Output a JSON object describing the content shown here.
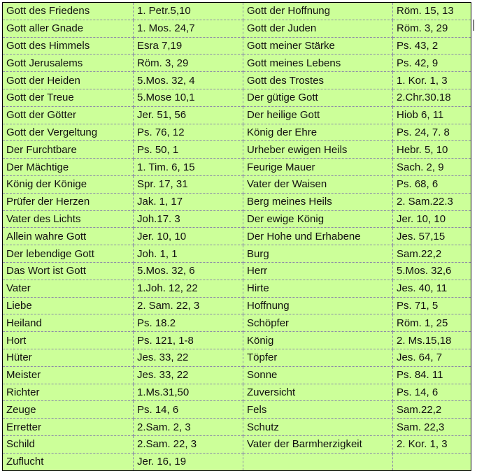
{
  "rows": [
    [
      "Gott des Friedens",
      "1. Petr.5,10",
      "Gott der Hoffnung",
      "Röm. 15, 13"
    ],
    [
      "Gott aller Gnade",
      "1. Mos. 24,7",
      "Gott der Juden",
      "Röm. 3, 29"
    ],
    [
      "Gott des Himmels",
      "Esra 7,19",
      "Gott meiner Stärke",
      "Ps. 43, 2"
    ],
    [
      "Gott Jerusalems",
      "Röm. 3, 29",
      "Gott meines Lebens",
      "Ps. 42, 9"
    ],
    [
      "Gott der Heiden",
      "5.Mos. 32, 4",
      "Gott des Trostes",
      "1. Kor. 1, 3"
    ],
    [
      "Gott der Treue",
      "5.Mose 10,1",
      "Der gütige Gott",
      "2.Chr.30.18"
    ],
    [
      "Gott der Götter",
      "Jer. 51, 56",
      "Der heilige Gott",
      "Hiob 6, 11"
    ],
    [
      "Gott der Vergeltung",
      "Ps. 76, 12",
      "König der Ehre",
      "Ps. 24, 7. 8"
    ],
    [
      "Der Furchtbare",
      "Ps. 50, 1",
      "Urheber ewigen Heils",
      "Hebr. 5, 10"
    ],
    [
      "Der Mächtige",
      "1. Tim. 6, 15",
      "Feurige Mauer",
      "Sach. 2, 9"
    ],
    [
      "König der Könige",
      "Spr. 17, 31",
      "Vater der Waisen",
      "Ps. 68, 6"
    ],
    [
      "Prüfer der Herzen",
      "Jak. 1, 17",
      "Berg meines Heils",
      "2. Sam.22.3"
    ],
    [
      "Vater des Lichts",
      "Joh.17. 3",
      "Der ewige König",
      "Jer. 10, 10"
    ],
    [
      "Allein wahre Gott",
      "Jer. 10, 10",
      "Der Hohe und Erhabene",
      "Jes. 57,15"
    ],
    [
      "Der lebendige Gott",
      "Joh. 1, 1",
      "Burg",
      "Sam.22,2"
    ],
    [
      "Das Wort ist Gott",
      "5.Mos. 32, 6",
      "Herr",
      "5.Mos. 32,6"
    ],
    [
      "Vater",
      "1.Joh. 12, 22",
      "Hirte",
      "Jes. 40, 11"
    ],
    [
      "Liebe",
      "2. Sam. 22, 3",
      "Hoffnung",
      "Ps. 71, 5"
    ],
    [
      "Heiland",
      "Ps. 18.2",
      "Schöpfer",
      "Röm. 1, 25"
    ],
    [
      "Hort",
      "Ps. 121, 1-8",
      "König",
      "2. Ms.15,18"
    ],
    [
      "Hüter",
      "Jes. 33, 22",
      "Töpfer",
      "Jes. 64, 7"
    ],
    [
      "Meister",
      "Jes. 33, 22",
      "Sonne",
      "Ps. 84. 11"
    ],
    [
      "Richter",
      "1.Ms.31,50",
      "Zuversicht",
      "Ps. 14, 6"
    ],
    [
      "Zeuge",
      "Ps. 14, 6",
      "Fels",
      "Sam.22,2"
    ],
    [
      "Erretter",
      "2.Sam. 2, 3",
      "Schutz",
      "Sam. 22,3"
    ],
    [
      "Schild",
      "2.Sam. 22, 3",
      "Vater der Barmherzigkeit",
      "2. Kor. 1, 3"
    ],
    [
      "Zuflucht",
      "Jer. 16, 19",
      "",
      ""
    ]
  ],
  "colors": {
    "cell_background": "#ccff99",
    "border": "#000000"
  }
}
